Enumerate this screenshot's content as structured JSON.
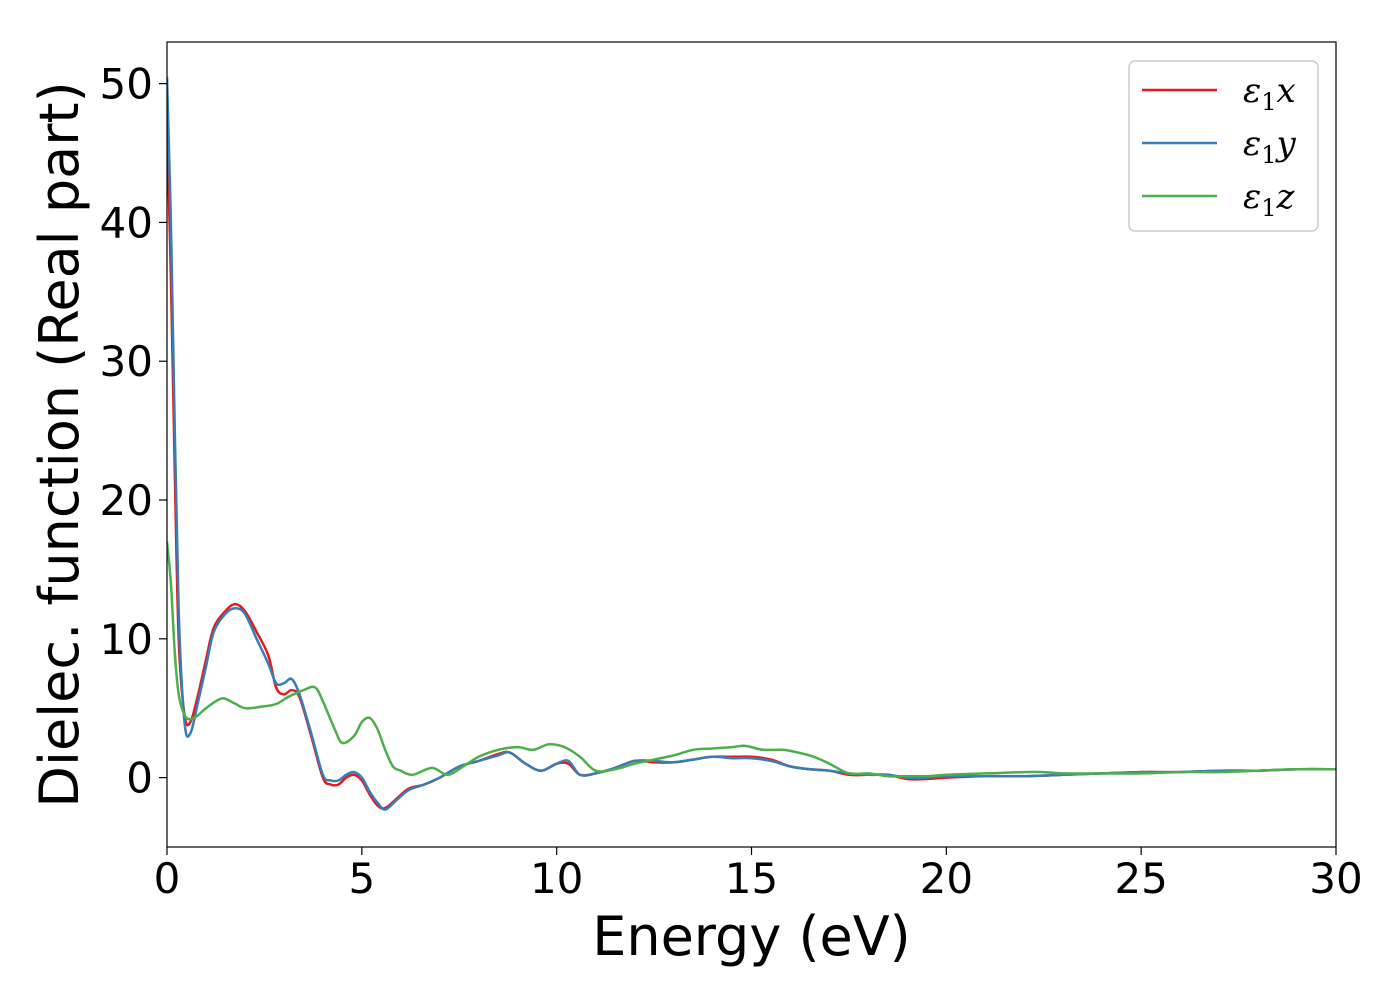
{
  "chart_data": {
    "type": "line",
    "xlabel": "Energy (eV)",
    "ylabel": "Dielec. function (Real part)",
    "xlim": [
      0,
      30
    ],
    "ylim": [
      -5,
      53
    ],
    "xticks": [
      "0",
      "5",
      "10",
      "15",
      "20",
      "25",
      "30"
    ],
    "yticks": [
      "0",
      "10",
      "20",
      "30",
      "40",
      "50"
    ],
    "grid": false,
    "legend_position": "top-right",
    "series": [
      {
        "name": "ε₁x",
        "legend_base": "ε",
        "legend_sub": "1",
        "legend_suffix": "x",
        "color": "#e41a1c",
        "x": [
          0,
          0.1,
          0.2,
          0.3,
          0.45,
          0.6,
          0.8,
          1.0,
          1.2,
          1.5,
          1.75,
          2.0,
          2.3,
          2.6,
          2.8,
          3.0,
          3.2,
          3.4,
          3.7,
          4.0,
          4.2,
          4.4,
          4.6,
          4.8,
          5.0,
          5.2,
          5.4,
          5.6,
          5.9,
          6.2,
          6.6,
          7.0,
          7.5,
          8.0,
          8.5,
          8.8,
          9.2,
          9.6,
          10.0,
          10.3,
          10.6,
          11.0,
          11.5,
          12.0,
          12.5,
          13.0,
          13.5,
          14.0,
          14.5,
          15.0,
          15.5,
          16.0,
          16.5,
          17.0,
          17.5,
          18.0,
          18.5,
          19.0,
          19.5,
          20.0,
          21.0,
          22.0,
          23.0,
          24.0,
          25.0,
          26.0,
          27.0,
          28.0,
          29.0,
          30.0
        ],
        "y": [
          47,
          36,
          22,
          10,
          4.5,
          4.0,
          6.0,
          8.5,
          10.8,
          12.0,
          12.5,
          12.0,
          10.5,
          8.8,
          6.5,
          6.0,
          6.3,
          5.8,
          3.0,
          0.0,
          -0.5,
          -0.5,
          0.0,
          0.2,
          -0.2,
          -1.2,
          -2.0,
          -2.2,
          -1.5,
          -0.8,
          -0.5,
          0.0,
          0.8,
          1.2,
          1.7,
          1.8,
          1.0,
          0.5,
          1.0,
          1.0,
          0.2,
          0.3,
          0.7,
          1.2,
          1.1,
          1.1,
          1.3,
          1.5,
          1.5,
          1.5,
          1.3,
          0.8,
          0.6,
          0.5,
          0.2,
          0.2,
          0.2,
          -0.1,
          -0.1,
          0.0,
          0.1,
          0.1,
          0.2,
          0.3,
          0.4,
          0.4,
          0.5,
          0.5,
          0.6,
          0.6
        ]
      },
      {
        "name": "ε₁y",
        "legend_base": "ε",
        "legend_sub": "1",
        "legend_suffix": "y",
        "color": "#377eb8",
        "x": [
          0,
          0.1,
          0.2,
          0.3,
          0.45,
          0.6,
          0.8,
          1.0,
          1.2,
          1.5,
          1.75,
          2.0,
          2.3,
          2.6,
          2.8,
          3.0,
          3.2,
          3.4,
          3.7,
          4.0,
          4.2,
          4.4,
          4.6,
          4.8,
          5.0,
          5.2,
          5.4,
          5.6,
          5.9,
          6.2,
          6.6,
          7.0,
          7.5,
          8.0,
          8.5,
          8.8,
          9.2,
          9.6,
          10.0,
          10.3,
          10.6,
          11.0,
          11.5,
          12.0,
          12.5,
          13.0,
          13.5,
          14.0,
          14.5,
          15.0,
          15.5,
          16.0,
          16.5,
          17.0,
          17.5,
          18.0,
          18.5,
          19.0,
          19.5,
          20.0,
          21.0,
          22.0,
          23.0,
          24.0,
          25.0,
          26.0,
          27.0,
          28.0,
          29.0,
          30.0
        ],
        "y": [
          50.5,
          40,
          25,
          12,
          4.0,
          3.2,
          5.5,
          8.0,
          10.5,
          11.8,
          12.2,
          11.8,
          10.0,
          8.2,
          6.8,
          6.8,
          7.1,
          6.0,
          3.2,
          0.2,
          -0.2,
          -0.2,
          0.2,
          0.4,
          0.0,
          -1.0,
          -1.8,
          -2.3,
          -1.6,
          -0.9,
          -0.5,
          0.0,
          0.8,
          1.2,
          1.6,
          1.8,
          1.0,
          0.5,
          1.0,
          1.2,
          0.2,
          0.3,
          0.7,
          1.2,
          1.2,
          1.1,
          1.3,
          1.5,
          1.4,
          1.4,
          1.2,
          0.8,
          0.6,
          0.5,
          0.3,
          0.2,
          0.2,
          0.0,
          0.0,
          0.1,
          0.1,
          0.1,
          0.2,
          0.3,
          0.4,
          0.4,
          0.5,
          0.5,
          0.6,
          0.6
        ]
      },
      {
        "name": "ε₁z",
        "legend_base": "ε",
        "legend_sub": "1",
        "legend_suffix": "z",
        "color": "#4daf4a",
        "x": [
          0,
          0.1,
          0.2,
          0.3,
          0.45,
          0.6,
          0.8,
          1.0,
          1.4,
          1.7,
          2.0,
          2.4,
          2.8,
          3.1,
          3.5,
          3.8,
          4.0,
          4.3,
          4.5,
          4.8,
          5.0,
          5.2,
          5.4,
          5.6,
          5.8,
          6.0,
          6.3,
          6.8,
          7.2,
          7.6,
          8.0,
          8.5,
          9.0,
          9.4,
          9.8,
          10.2,
          10.6,
          11.0,
          11.5,
          12.0,
          12.5,
          13.0,
          13.5,
          14.0,
          14.5,
          14.8,
          15.0,
          15.3,
          15.8,
          16.2,
          16.6,
          17.0,
          17.5,
          18.0,
          18.5,
          19.0,
          19.5,
          20.0,
          21.0,
          22.0,
          22.5,
          23.0,
          24.0,
          25.0,
          26.0,
          27.0,
          28.0,
          29.0,
          30.0
        ],
        "y": [
          17,
          14,
          9,
          6,
          4.5,
          4.2,
          4.5,
          5.0,
          5.7,
          5.4,
          5.0,
          5.1,
          5.3,
          5.8,
          6.3,
          6.5,
          5.5,
          3.5,
          2.5,
          3.0,
          4.0,
          4.3,
          3.5,
          2.0,
          0.8,
          0.5,
          0.2,
          0.7,
          0.2,
          0.8,
          1.5,
          2.0,
          2.2,
          2.0,
          2.4,
          2.2,
          1.5,
          0.5,
          0.6,
          1.0,
          1.3,
          1.6,
          2.0,
          2.1,
          2.2,
          2.3,
          2.2,
          2.0,
          2.0,
          1.8,
          1.5,
          1.0,
          0.3,
          0.3,
          0.1,
          0.1,
          0.1,
          0.2,
          0.3,
          0.4,
          0.4,
          0.3,
          0.3,
          0.3,
          0.4,
          0.4,
          0.5,
          0.6,
          0.6
        ]
      }
    ]
  }
}
